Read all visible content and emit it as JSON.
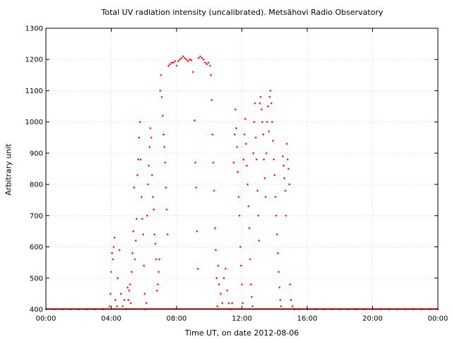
{
  "chart_data": {
    "type": "scatter",
    "title": "Total UV radiation intensity (uncalibrated). Metsähovi Radio Observatory",
    "xlabel": "Time UT, on date 2012-08-06",
    "ylabel": "Arbitrary unit",
    "xlim": [
      "00:00",
      "24:00"
    ],
    "ylim": [
      400,
      1300
    ],
    "x_ticks": [
      "00:00",
      "04:00",
      "08:00",
      "12:00",
      "16:00",
      "20:00",
      "00:00"
    ],
    "y_ticks": [
      "400",
      "500",
      "600",
      "700",
      "800",
      "900",
      "1000",
      "1100",
      "1200",
      "1300"
    ],
    "grid": true,
    "marker_color": "#ff0000",
    "series": [
      {
        "points": [
          [
            0.0,
            400
          ],
          [
            0.5,
            400
          ],
          [
            1.0,
            400
          ],
          [
            1.5,
            400
          ],
          [
            2.0,
            400
          ],
          [
            2.5,
            400
          ],
          [
            3.0,
            400
          ],
          [
            3.5,
            400
          ],
          [
            3.9,
            410
          ],
          [
            3.95,
            450
          ],
          [
            4.0,
            520
          ],
          [
            4.05,
            580
          ],
          [
            4.1,
            560
          ],
          [
            4.15,
            600
          ],
          [
            4.2,
            630
          ],
          [
            4.25,
            430
          ],
          [
            4.35,
            410
          ],
          [
            4.4,
            500
          ],
          [
            4.5,
            590
          ],
          [
            4.6,
            450
          ],
          [
            4.7,
            410
          ],
          [
            4.8,
            430
          ],
          [
            4.9,
            400
          ],
          [
            5.0,
            470
          ],
          [
            5.05,
            430
          ],
          [
            5.1,
            460
          ],
          [
            5.15,
            480
          ],
          [
            5.2,
            420
          ],
          [
            5.25,
            520
          ],
          [
            5.3,
            580
          ],
          [
            5.35,
            650
          ],
          [
            5.4,
            790
          ],
          [
            5.45,
            560
          ],
          [
            5.5,
            620
          ],
          [
            5.55,
            690
          ],
          [
            5.6,
            830
          ],
          [
            5.65,
            880
          ],
          [
            5.7,
            950
          ],
          [
            5.75,
            1000
          ],
          [
            5.8,
            880
          ],
          [
            5.85,
            760
          ],
          [
            5.9,
            690
          ],
          [
            5.95,
            640
          ],
          [
            6.0,
            540
          ],
          [
            6.05,
            450
          ],
          [
            6.1,
            400
          ],
          [
            6.15,
            420
          ],
          [
            6.2,
            700
          ],
          [
            6.25,
            800
          ],
          [
            6.3,
            860
          ],
          [
            6.35,
            920
          ],
          [
            6.4,
            980
          ],
          [
            6.45,
            950
          ],
          [
            6.5,
            830
          ],
          [
            6.55,
            760
          ],
          [
            6.6,
            720
          ],
          [
            6.65,
            640
          ],
          [
            6.7,
            610
          ],
          [
            6.75,
            560
          ],
          [
            6.8,
            460
          ],
          [
            6.85,
            480
          ],
          [
            6.9,
            520
          ],
          [
            6.95,
            560
          ],
          [
            7.0,
            1100
          ],
          [
            7.05,
            1150
          ],
          [
            7.1,
            1080
          ],
          [
            7.15,
            1020
          ],
          [
            7.2,
            960
          ],
          [
            7.25,
            920
          ],
          [
            7.3,
            870
          ],
          [
            7.35,
            790
          ],
          [
            7.4,
            720
          ],
          [
            7.45,
            640
          ],
          [
            7.5,
            1180
          ],
          [
            7.6,
            1185
          ],
          [
            7.7,
            1190
          ],
          [
            7.8,
            1190
          ],
          [
            7.9,
            1195
          ],
          [
            8.0,
            1180
          ],
          [
            8.1,
            1195
          ],
          [
            8.2,
            1200
          ],
          [
            8.3,
            1205
          ],
          [
            8.4,
            1210
          ],
          [
            8.5,
            1205
          ],
          [
            8.6,
            1200
          ],
          [
            8.7,
            1195
          ],
          [
            8.8,
            1200
          ],
          [
            8.9,
            1198
          ],
          [
            9.0,
            1160
          ],
          [
            9.1,
            1005
          ],
          [
            9.15,
            870
          ],
          [
            9.2,
            790
          ],
          [
            9.25,
            650
          ],
          [
            9.3,
            530
          ],
          [
            9.35,
            1205
          ],
          [
            9.45,
            1210
          ],
          [
            9.55,
            1205
          ],
          [
            9.65,
            1200
          ],
          [
            9.75,
            1190
          ],
          [
            9.85,
            1185
          ],
          [
            9.95,
            1190
          ],
          [
            10.05,
            1180
          ],
          [
            10.1,
            1150
          ],
          [
            10.15,
            1070
          ],
          [
            10.2,
            960
          ],
          [
            10.25,
            870
          ],
          [
            10.3,
            780
          ],
          [
            10.35,
            660
          ],
          [
            10.4,
            590
          ],
          [
            10.45,
            500
          ],
          [
            10.5,
            410
          ],
          [
            10.55,
            540
          ],
          [
            10.6,
            480
          ],
          [
            10.7,
            450
          ],
          [
            10.8,
            420
          ],
          [
            10.9,
            500
          ],
          [
            11.0,
            530
          ],
          [
            11.1,
            460
          ],
          [
            11.2,
            420
          ],
          [
            11.3,
            400
          ],
          [
            11.4,
            420
          ],
          [
            11.5,
            870
          ],
          [
            11.55,
            960
          ],
          [
            11.6,
            1040
          ],
          [
            11.65,
            980
          ],
          [
            11.7,
            920
          ],
          [
            11.75,
            840
          ],
          [
            11.8,
            760
          ],
          [
            11.85,
            700
          ],
          [
            11.9,
            600
          ],
          [
            11.95,
            540
          ],
          [
            12.0,
            480
          ],
          [
            12.05,
            420
          ],
          [
            12.1,
            880
          ],
          [
            12.15,
            960
          ],
          [
            12.2,
            1010
          ],
          [
            12.25,
            930
          ],
          [
            12.3,
            860
          ],
          [
            12.35,
            800
          ],
          [
            12.4,
            730
          ],
          [
            12.45,
            660
          ],
          [
            12.5,
            560
          ],
          [
            12.55,
            480
          ],
          [
            12.6,
            440
          ],
          [
            12.65,
            410
          ],
          [
            12.7,
            900
          ],
          [
            12.75,
            1000
          ],
          [
            12.8,
            1060
          ],
          [
            12.85,
            950
          ],
          [
            12.9,
            880
          ],
          [
            12.95,
            780
          ],
          [
            13.0,
            700
          ],
          [
            13.05,
            620
          ],
          [
            13.1,
            1060
          ],
          [
            13.15,
            1080
          ],
          [
            13.2,
            1040
          ],
          [
            13.25,
            1000
          ],
          [
            13.3,
            960
          ],
          [
            13.35,
            880
          ],
          [
            13.4,
            820
          ],
          [
            13.45,
            760
          ],
          [
            13.5,
            900
          ],
          [
            13.55,
            1000
          ],
          [
            13.6,
            1050
          ],
          [
            13.65,
            970
          ],
          [
            13.7,
            1080
          ],
          [
            13.75,
            1100
          ],
          [
            13.8,
            1060
          ],
          [
            13.85,
            1000
          ],
          [
            13.9,
            940
          ],
          [
            13.95,
            880
          ],
          [
            14.0,
            830
          ],
          [
            14.05,
            760
          ],
          [
            14.1,
            700
          ],
          [
            14.15,
            640
          ],
          [
            14.2,
            580
          ],
          [
            14.25,
            520
          ],
          [
            14.3,
            470
          ],
          [
            14.35,
            430
          ],
          [
            14.4,
            410
          ],
          [
            14.5,
            890
          ],
          [
            14.55,
            860
          ],
          [
            14.6,
            820
          ],
          [
            14.65,
            780
          ],
          [
            14.7,
            700
          ],
          [
            14.75,
            930
          ],
          [
            14.8,
            880
          ],
          [
            14.85,
            850
          ],
          [
            14.9,
            800
          ],
          [
            14.95,
            480
          ],
          [
            15.0,
            430
          ],
          [
            15.1,
            410
          ],
          [
            15.2,
            400
          ],
          [
            15.5,
            400
          ],
          [
            16.0,
            400
          ],
          [
            16.5,
            400
          ],
          [
            17.0,
            400
          ],
          [
            17.5,
            400
          ],
          [
            18.0,
            400
          ],
          [
            18.5,
            400
          ],
          [
            19.0,
            400
          ],
          [
            19.5,
            400
          ],
          [
            20.0,
            400
          ],
          [
            20.5,
            400
          ],
          [
            21.0,
            400
          ],
          [
            21.5,
            400
          ],
          [
            22.0,
            400
          ],
          [
            22.5,
            400
          ],
          [
            23.0,
            400
          ],
          [
            23.5,
            400
          ],
          [
            24.0,
            400
          ]
        ]
      }
    ]
  }
}
